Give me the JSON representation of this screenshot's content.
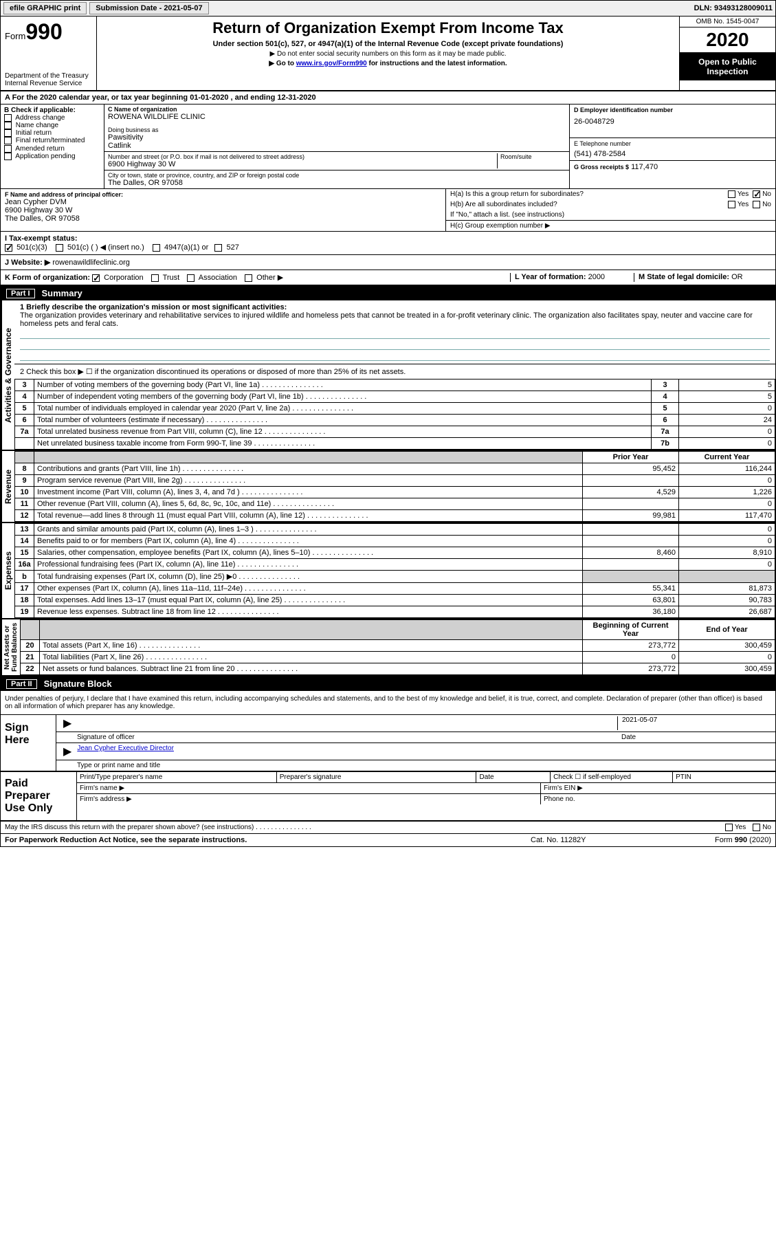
{
  "topbar": {
    "efile": "efile GRAPHIC print",
    "submission_label": "Submission Date - 2021-05-07",
    "dln": "DLN: 93493128009011"
  },
  "header": {
    "form_word": "Form",
    "form_num": "990",
    "dept": "Department of the Treasury\nInternal Revenue Service",
    "title": "Return of Organization Exempt From Income Tax",
    "subtitle": "Under section 501(c), 527, or 4947(a)(1) of the Internal Revenue Code (except private foundations)",
    "note1": "▶ Do not enter social security numbers on this form as it may be made public.",
    "note2_pre": "▶ Go to ",
    "note2_link": "www.irs.gov/Form990",
    "note2_post": " for instructions and the latest information.",
    "omb": "OMB No. 1545-0047",
    "year": "2020",
    "inspect": "Open to Public Inspection"
  },
  "period": "A For the 2020 calendar year, or tax year beginning 01-01-2020    , and ending 12-31-2020",
  "sectionB": {
    "label": "B Check if applicable:",
    "items": [
      "Address change",
      "Name change",
      "Initial return",
      "Final return/terminated",
      "Amended return",
      "Application pending"
    ]
  },
  "sectionC": {
    "name_lbl": "C Name of organization",
    "name": "ROWENA WILDLIFE CLINIC",
    "dba_lbl": "Doing business as",
    "dba": "Pawsitivity\nCatlink",
    "street_lbl": "Number and street (or P.O. box if mail is not delivered to street address)",
    "room_lbl": "Room/suite",
    "street": "6900 Highway 30 W",
    "city_lbl": "City or town, state or province, country, and ZIP or foreign postal code",
    "city": "The Dalles, OR  97058"
  },
  "sectionD": {
    "ein_lbl": "D Employer identification number",
    "ein": "26-0048729",
    "phone_lbl": "E Telephone number",
    "phone": "(541) 478-2584",
    "gross_lbl": "G Gross receipts $",
    "gross": "117,470"
  },
  "sectionF": {
    "lbl": "F  Name and address of principal officer:",
    "name": "Jean Cypher DVM",
    "addr1": "6900 Highway 30 W",
    "addr2": "The Dalles, OR  97058"
  },
  "sectionH": {
    "a": "H(a)  Is this a group return for subordinates?",
    "b": "H(b)  Are all subordinates included?",
    "b_note": "If \"No,\" attach a list. (see instructions)",
    "c": "H(c)  Group exemption number ▶",
    "yes": "Yes",
    "no": "No"
  },
  "taxStatus": {
    "lbl": "I   Tax-exempt status:",
    "opts": [
      "501(c)(3)",
      "501(c) (  ) ◀ (insert no.)",
      "4947(a)(1) or",
      "527"
    ]
  },
  "website": {
    "lbl": "J   Website: ▶",
    "val": "rowenawildlifeclinic.org"
  },
  "kRow": {
    "k_lbl": "K Form of organization:",
    "k_opts": [
      "Corporation",
      "Trust",
      "Association",
      "Other ▶"
    ],
    "l_lbl": "L Year of formation:",
    "l_val": "2000",
    "m_lbl": "M State of legal domicile:",
    "m_val": "OR"
  },
  "part1": {
    "num": "Part I",
    "title": "Summary"
  },
  "summary": {
    "q1_lbl": "1  Briefly describe the organization's mission or most significant activities:",
    "q1_text": "The organization provides veterinary and rehabilitative services to injured wildlife and homeless pets that cannot be treated in a for-profit veterinary clinic. The organization also facilitates spay, neuter and vaccine care for homeless pets and feral cats.",
    "q2": "2   Check this box ▶ ☐  if the organization discontinued its operations or disposed of more than 25% of its net assets.",
    "lines": [
      {
        "n": "3",
        "label": "Number of voting members of the governing body (Part VI, line 1a)",
        "box": "3",
        "v": "5"
      },
      {
        "n": "4",
        "label": "Number of independent voting members of the governing body (Part VI, line 1b)",
        "box": "4",
        "v": "5"
      },
      {
        "n": "5",
        "label": "Total number of individuals employed in calendar year 2020 (Part V, line 2a)",
        "box": "5",
        "v": "0"
      },
      {
        "n": "6",
        "label": "Total number of volunteers (estimate if necessary)",
        "box": "6",
        "v": "24"
      },
      {
        "n": "7a",
        "label": "Total unrelated business revenue from Part VIII, column (C), line 12",
        "box": "7a",
        "v": "0"
      },
      {
        "n": "",
        "label": "Net unrelated business taxable income from Form 990-T, line 39",
        "box": "7b",
        "v": "0"
      }
    ],
    "prior_hdr": "Prior Year",
    "current_hdr": "Current Year",
    "revenue": [
      {
        "n": "8",
        "label": "Contributions and grants (Part VIII, line 1h)",
        "p": "95,452",
        "c": "116,244"
      },
      {
        "n": "9",
        "label": "Program service revenue (Part VIII, line 2g)",
        "p": "",
        "c": "0"
      },
      {
        "n": "10",
        "label": "Investment income (Part VIII, column (A), lines 3, 4, and 7d )",
        "p": "4,529",
        "c": "1,226"
      },
      {
        "n": "11",
        "label": "Other revenue (Part VIII, column (A), lines 5, 6d, 8c, 9c, 10c, and 11e)",
        "p": "",
        "c": "0"
      },
      {
        "n": "12",
        "label": "Total revenue—add lines 8 through 11 (must equal Part VIII, column (A), line 12)",
        "p": "99,981",
        "c": "117,470"
      }
    ],
    "expenses": [
      {
        "n": "13",
        "label": "Grants and similar amounts paid (Part IX, column (A), lines 1–3 )",
        "p": "",
        "c": "0"
      },
      {
        "n": "14",
        "label": "Benefits paid to or for members (Part IX, column (A), line 4)",
        "p": "",
        "c": "0"
      },
      {
        "n": "15",
        "label": "Salaries, other compensation, employee benefits (Part IX, column (A), lines 5–10)",
        "p": "8,460",
        "c": "8,910"
      },
      {
        "n": "16a",
        "label": "Professional fundraising fees (Part IX, column (A), line 11e)",
        "p": "",
        "c": "0"
      },
      {
        "n": "b",
        "label": "Total fundraising expenses (Part IX, column (D), line 25) ▶0",
        "p": "shade",
        "c": "shade"
      },
      {
        "n": "17",
        "label": "Other expenses (Part IX, column (A), lines 11a–11d, 11f–24e)",
        "p": "55,341",
        "c": "81,873"
      },
      {
        "n": "18",
        "label": "Total expenses. Add lines 13–17 (must equal Part IX, column (A), line 25)",
        "p": "63,801",
        "c": "90,783"
      },
      {
        "n": "19",
        "label": "Revenue less expenses. Subtract line 18 from line 12",
        "p": "36,180",
        "c": "26,687"
      }
    ],
    "begin_hdr": "Beginning of Current Year",
    "end_hdr": "End of Year",
    "netassets": [
      {
        "n": "20",
        "label": "Total assets (Part X, line 16)",
        "p": "273,772",
        "c": "300,459"
      },
      {
        "n": "21",
        "label": "Total liabilities (Part X, line 26)",
        "p": "0",
        "c": "0"
      },
      {
        "n": "22",
        "label": "Net assets or fund balances. Subtract line 21 from line 20",
        "p": "273,772",
        "c": "300,459"
      }
    ],
    "vl_gov": "Activities & Governance",
    "vl_rev": "Revenue",
    "vl_exp": "Expenses",
    "vl_net": "Net Assets or\nFund Balances"
  },
  "part2": {
    "num": "Part II",
    "title": "Signature Block"
  },
  "sig": {
    "declaration": "Under penalties of perjury, I declare that I have examined this return, including accompanying schedules and statements, and to the best of my knowledge and belief, it is true, correct, and complete. Declaration of preparer (other than officer) is based on all information of which preparer has any knowledge.",
    "sign_here": "Sign Here",
    "sig_officer": "Signature of officer",
    "date_lbl": "Date",
    "date": "2021-05-07",
    "name": "Jean Cypher  Executive Director",
    "name_lbl": "Type or print name and title"
  },
  "preparer": {
    "label": "Paid Preparer Use Only",
    "print_name": "Print/Type preparer's name",
    "prep_sig": "Preparer's signature",
    "date": "Date",
    "check": "Check ☐ if self-employed",
    "ptin": "PTIN",
    "firm_name": "Firm's name   ▶",
    "firm_ein": "Firm's EIN ▶",
    "firm_addr": "Firm's address ▶",
    "phone": "Phone no."
  },
  "footer": {
    "discuss": "May the IRS discuss this return with the preparer shown above? (see instructions)",
    "yes": "Yes",
    "no": "No",
    "paperwork": "For Paperwork Reduction Act Notice, see the separate instructions.",
    "cat": "Cat. No. 11282Y",
    "form": "Form 990 (2020)"
  }
}
